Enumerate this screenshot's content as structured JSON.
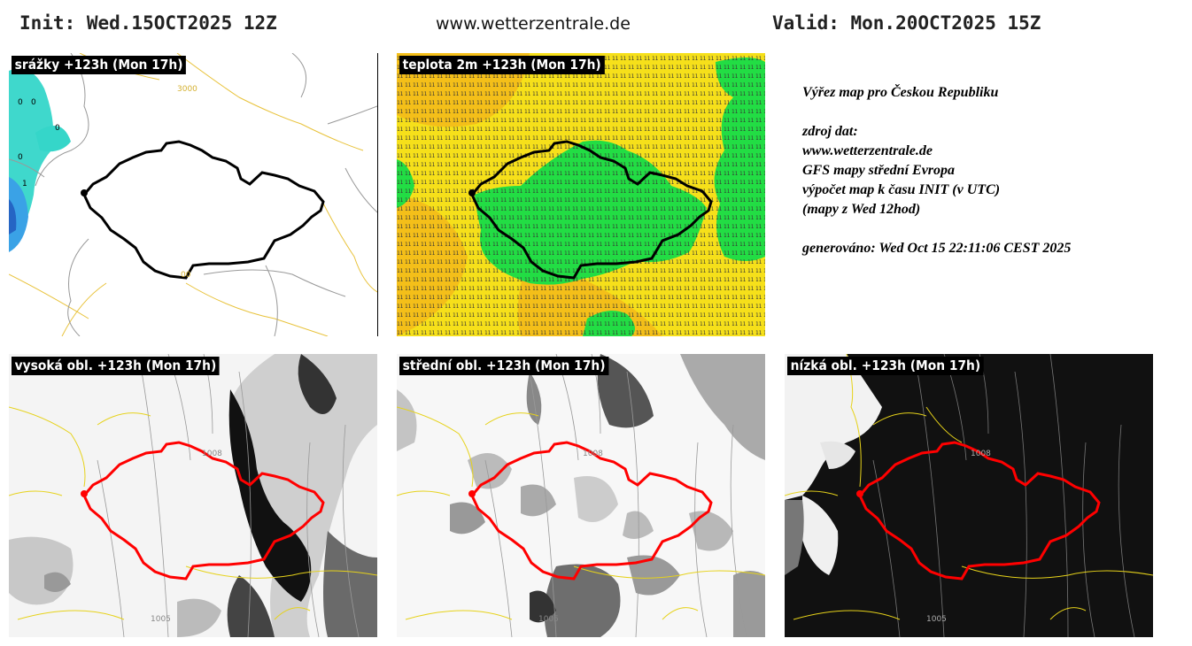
{
  "header": {
    "init": "Init: Wed.15OCT2025 12Z",
    "site": "www.wetterzentrale.de",
    "valid": "Valid: Mon.20OCT2025 15Z"
  },
  "panels": {
    "precip": {
      "label": "srážky +123h (Mon 17h)",
      "contours": [
        "3000",
        "0",
        "0",
        "0",
        "1",
        "0",
        "00"
      ]
    },
    "temp": {
      "label": "teplota 2m +123h (Mon 17h)"
    },
    "high": {
      "label": "vysoká obl. +123h (Mon 17h)",
      "isobars": [
        "1008",
        "1005"
      ]
    },
    "mid": {
      "label": "střední obl. +123h (Mon 17h)",
      "isobars": [
        "1008",
        "1005"
      ]
    },
    "low": {
      "label": "nízká obl. +123h (Mon 17h)",
      "isobars": [
        "1008",
        "1005"
      ]
    }
  },
  "info": {
    "title": "Výřez map pro Českou Republiku",
    "source_label": "zdroj dat:",
    "source_url": "www.wetterzentrale.de",
    "line1": "GFS mapy střední Evropa",
    "line2": "výpočet map k času INIT (v UTC)",
    "line3": "(mapy z Wed 12hod)",
    "generated": "generováno: Wed Oct 15 22:11:06 CEST 2025"
  },
  "colors": {
    "border_black": "#000000",
    "border_red": "#ff0000",
    "precip_cyan": "#35d6c9",
    "precip_blue": "#3aa2e6",
    "temp_yellow": "#f6e01a",
    "temp_orange": "#f4bf19",
    "temp_green": "#22dd44",
    "country_lines": "#e8c23a",
    "cloud_dark": "#111111"
  }
}
